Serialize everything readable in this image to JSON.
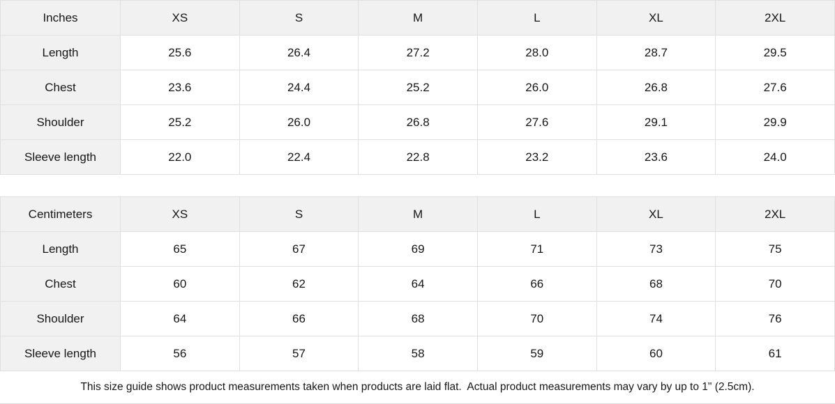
{
  "tables": [
    {
      "unit_label": "Inches",
      "sizes": [
        "XS",
        "S",
        "M",
        "L",
        "XL",
        "2XL"
      ],
      "rows": [
        {
          "label": "Length",
          "values": [
            "25.6",
            "26.4",
            "27.2",
            "28.0",
            "28.7",
            "29.5"
          ]
        },
        {
          "label": "Chest",
          "values": [
            "23.6",
            "24.4",
            "25.2",
            "26.0",
            "26.8",
            "27.6"
          ]
        },
        {
          "label": "Shoulder",
          "values": [
            "25.2",
            "26.0",
            "26.8",
            "27.6",
            "29.1",
            "29.9"
          ]
        },
        {
          "label": "Sleeve length",
          "values": [
            "22.0",
            "22.4",
            "22.8",
            "23.2",
            "23.6",
            "24.0"
          ]
        }
      ]
    },
    {
      "unit_label": "Centimeters",
      "sizes": [
        "XS",
        "S",
        "M",
        "L",
        "XL",
        "2XL"
      ],
      "rows": [
        {
          "label": "Length",
          "values": [
            "65",
            "67",
            "69",
            "71",
            "73",
            "75"
          ]
        },
        {
          "label": "Chest",
          "values": [
            "60",
            "62",
            "64",
            "66",
            "68",
            "70"
          ]
        },
        {
          "label": "Shoulder",
          "values": [
            "64",
            "66",
            "68",
            "70",
            "74",
            "76"
          ]
        },
        {
          "label": "Sleeve length",
          "values": [
            "56",
            "57",
            "58",
            "59",
            "60",
            "61"
          ]
        }
      ]
    }
  ],
  "footer_note": "This size guide shows product measurements taken when products are laid flat.  Actual product measurements may vary by up to 1\" (2.5cm).",
  "colors": {
    "header_bg": "#f1f1f1",
    "border": "#e0e0e0",
    "text": "#161616"
  }
}
